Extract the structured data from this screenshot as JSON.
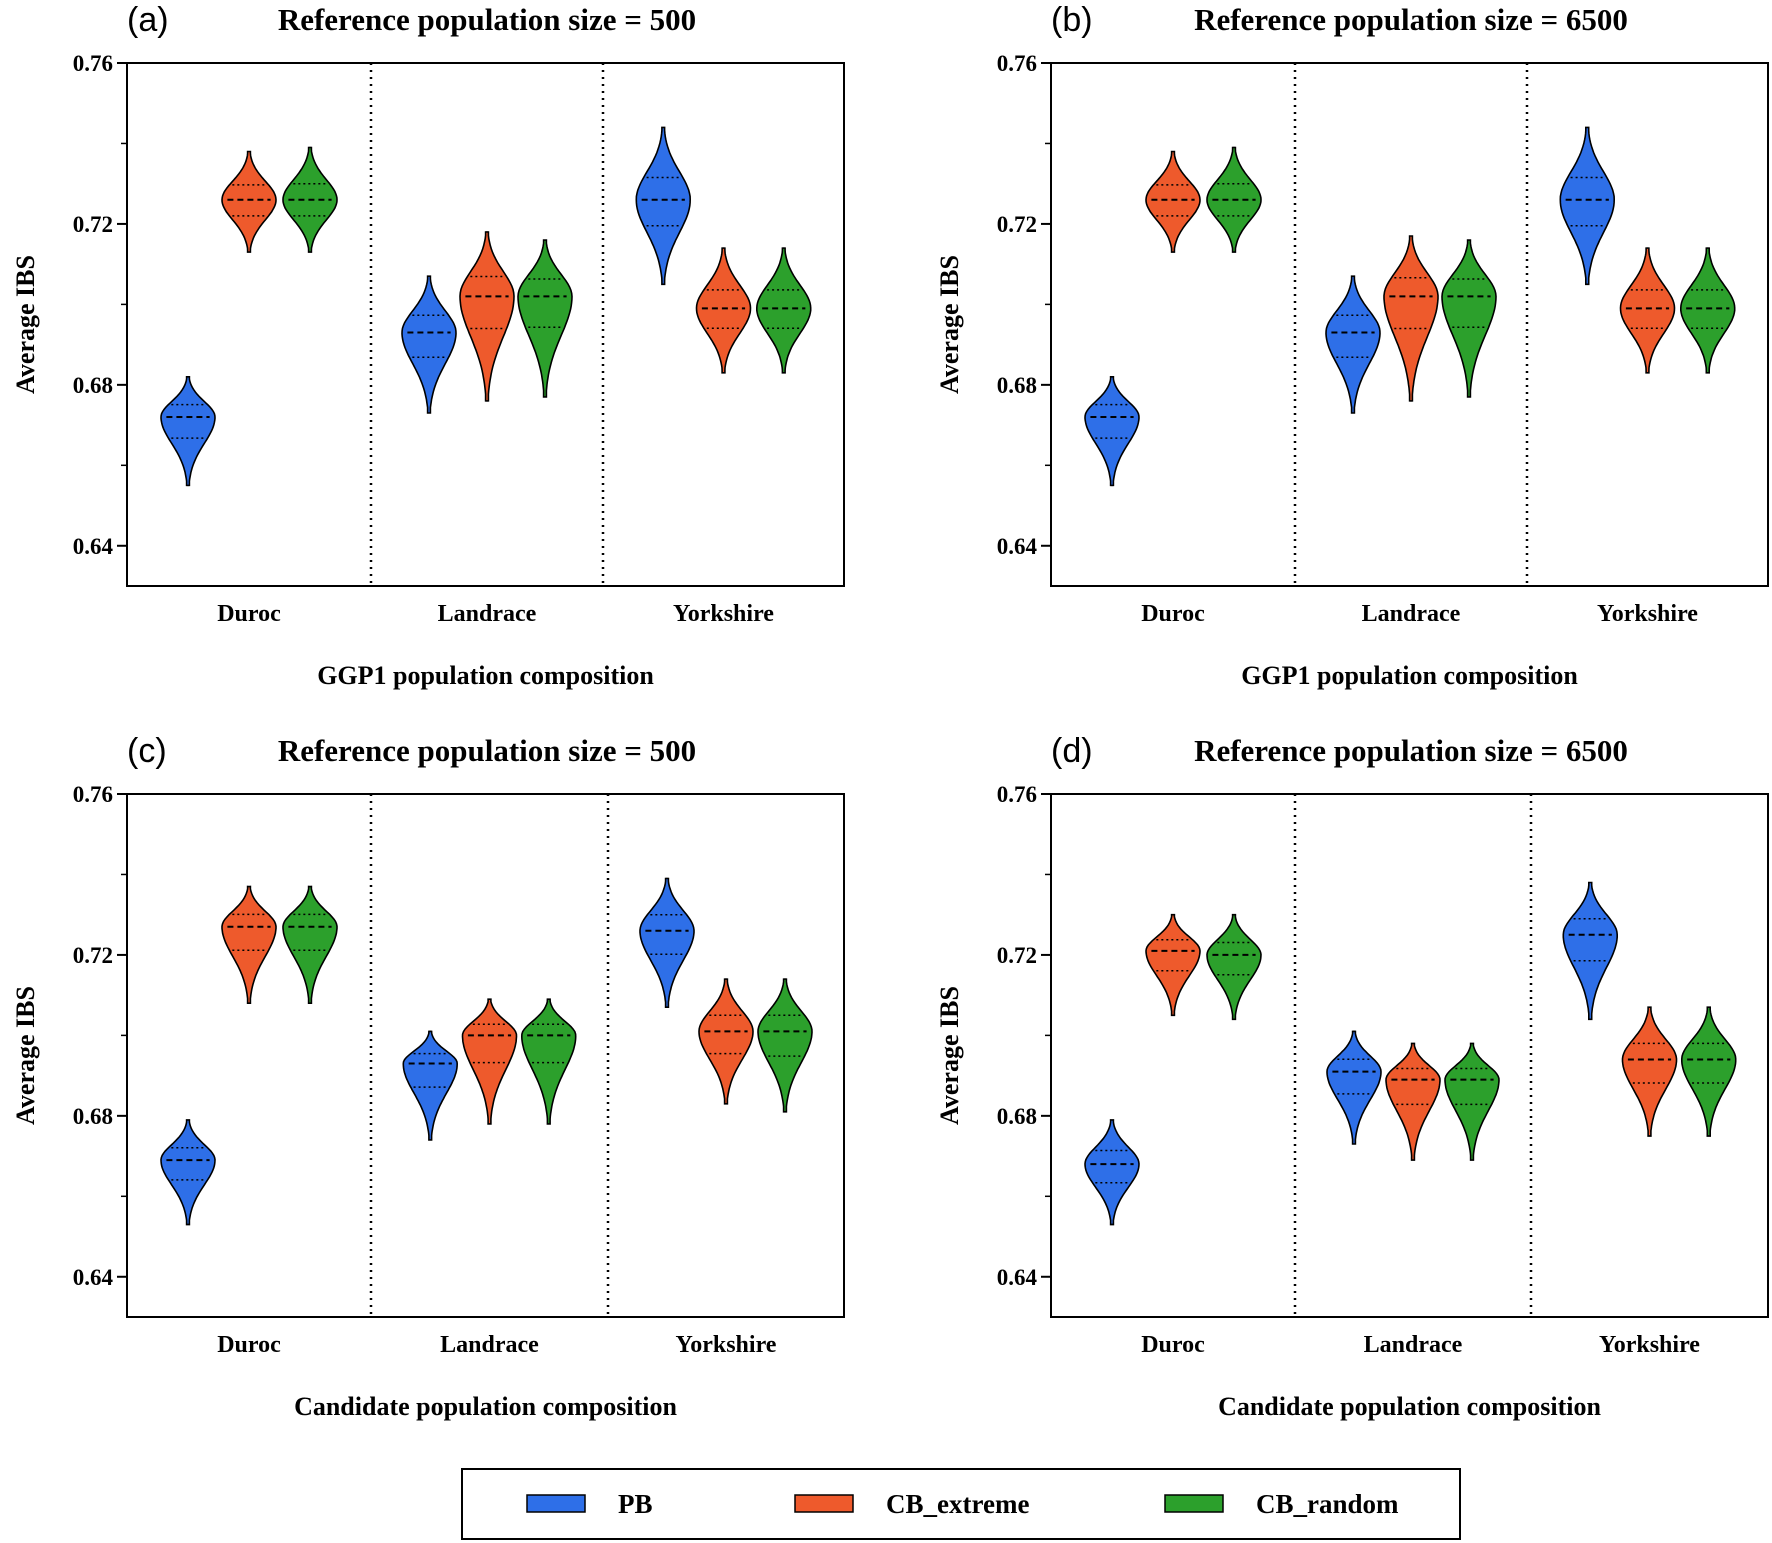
{
  "legend": {
    "items": [
      {
        "name": "PB",
        "color": "#2e6fe8"
      },
      {
        "name": "CB_extreme",
        "color": "#ee5a2c"
      },
      {
        "name": "CB_random",
        "color": "#2ca02c"
      }
    ]
  },
  "chart_data": [
    {
      "type": "violin",
      "panel": "(a)",
      "title": "Reference population size = 500",
      "xlabel": "GGP1 population composition",
      "ylabel": "Average IBS",
      "ylim": [
        0.63,
        0.76
      ],
      "yticks": [
        "0.64",
        "0.68",
        "0.72",
        "0.76"
      ],
      "categories": [
        "Duroc",
        "Landrace",
        "Yorkshire"
      ],
      "series": [
        {
          "name": "PB",
          "min": [
            0.655,
            0.673,
            0.705
          ],
          "max": [
            0.682,
            0.707,
            0.744
          ],
          "median": [
            0.672,
            0.693,
            0.726
          ]
        },
        {
          "name": "CB_extreme",
          "min": [
            0.713,
            0.676,
            0.683
          ],
          "max": [
            0.738,
            0.718,
            0.714
          ],
          "median": [
            0.726,
            0.702,
            0.699
          ]
        },
        {
          "name": "CB_random",
          "min": [
            0.713,
            0.677,
            0.683
          ],
          "max": [
            0.739,
            0.716,
            0.714
          ],
          "median": [
            0.726,
            0.702,
            0.699
          ]
        }
      ]
    },
    {
      "type": "violin",
      "panel": "(b)",
      "title": "Reference population size = 6500",
      "xlabel": "GGP1 population composition",
      "ylabel": "Average IBS",
      "ylim": [
        0.63,
        0.76
      ],
      "yticks": [
        "0.64",
        "0.68",
        "0.72",
        "0.76"
      ],
      "categories": [
        "Duroc",
        "Landrace",
        "Yorkshire"
      ],
      "series": [
        {
          "name": "PB",
          "min": [
            0.655,
            0.673,
            0.705
          ],
          "max": [
            0.682,
            0.707,
            0.744
          ],
          "median": [
            0.672,
            0.693,
            0.726
          ]
        },
        {
          "name": "CB_extreme",
          "min": [
            0.713,
            0.676,
            0.683
          ],
          "max": [
            0.738,
            0.717,
            0.714
          ],
          "median": [
            0.726,
            0.702,
            0.699
          ]
        },
        {
          "name": "CB_random",
          "min": [
            0.713,
            0.677,
            0.683
          ],
          "max": [
            0.739,
            0.716,
            0.714
          ],
          "median": [
            0.726,
            0.702,
            0.699
          ]
        }
      ]
    },
    {
      "type": "violin",
      "panel": "(c)",
      "title": "Reference population size = 500",
      "xlabel": "Candidate population composition",
      "ylabel": "Average IBS",
      "ylim": [
        0.63,
        0.76
      ],
      "yticks": [
        "0.64",
        "0.68",
        "0.72",
        "0.76"
      ],
      "categories": [
        "Duroc",
        "Landrace",
        "Yorkshire"
      ],
      "series": [
        {
          "name": "PB",
          "min": [
            0.653,
            0.674,
            0.707
          ],
          "max": [
            0.679,
            0.701,
            0.739
          ],
          "median": [
            0.669,
            0.693,
            0.726
          ]
        },
        {
          "name": "CB_extreme",
          "min": [
            0.708,
            0.678,
            0.683
          ],
          "max": [
            0.737,
            0.709,
            0.714
          ],
          "median": [
            0.727,
            0.7,
            0.701
          ]
        },
        {
          "name": "CB_random",
          "min": [
            0.708,
            0.678,
            0.681
          ],
          "max": [
            0.737,
            0.709,
            0.714
          ],
          "median": [
            0.727,
            0.7,
            0.701
          ]
        }
      ]
    },
    {
      "type": "violin",
      "panel": "(d)",
      "title": "Reference population size = 6500",
      "xlabel": "Candidate population composition",
      "ylabel": "Average IBS",
      "ylim": [
        0.63,
        0.76
      ],
      "yticks": [
        "0.64",
        "0.68",
        "0.72",
        "0.76"
      ],
      "categories": [
        "Duroc",
        "Landrace",
        "Yorkshire"
      ],
      "series": [
        {
          "name": "PB",
          "min": [
            0.653,
            0.673,
            0.704
          ],
          "max": [
            0.679,
            0.701,
            0.738
          ],
          "median": [
            0.668,
            0.691,
            0.725
          ]
        },
        {
          "name": "CB_extreme",
          "min": [
            0.705,
            0.669,
            0.675
          ],
          "max": [
            0.73,
            0.698,
            0.707
          ],
          "median": [
            0.721,
            0.689,
            0.694
          ]
        },
        {
          "name": "CB_random",
          "min": [
            0.704,
            0.669,
            0.675
          ],
          "max": [
            0.73,
            0.698,
            0.707
          ],
          "median": [
            0.72,
            0.689,
            0.694
          ]
        }
      ]
    }
  ]
}
